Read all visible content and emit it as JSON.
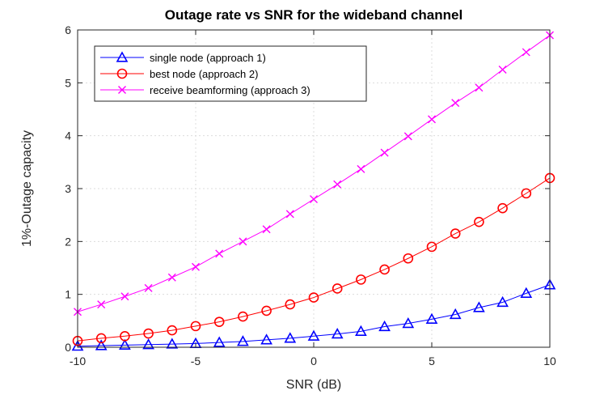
{
  "chart_data": {
    "type": "line",
    "title": "Outage rate vs SNR for the wideband channel",
    "xlabel": "SNR (dB)",
    "ylabel": "1%-Outage capacity",
    "xlim": [
      -10,
      10
    ],
    "ylim": [
      0,
      6
    ],
    "xticks": [
      -10,
      -5,
      0,
      5,
      10
    ],
    "yticks": [
      0,
      1,
      2,
      3,
      4,
      5,
      6
    ],
    "grid": true,
    "legend_position": "top-left",
    "x": [
      -10,
      -9,
      -8,
      -7,
      -6,
      -5,
      -4,
      -3,
      -2,
      -1,
      0,
      1,
      2,
      3,
      4,
      5,
      6,
      7,
      8,
      9,
      10
    ],
    "series": [
      {
        "name": "single node (approach 1)",
        "color": "#0000ff",
        "marker": "triangle",
        "values": [
          0.02,
          0.03,
          0.04,
          0.05,
          0.06,
          0.07,
          0.09,
          0.11,
          0.14,
          0.17,
          0.21,
          0.25,
          0.3,
          0.39,
          0.45,
          0.53,
          0.62,
          0.75,
          0.85,
          1.02,
          1.18
        ]
      },
      {
        "name": "best node (approach 2)",
        "color": "#ff0000",
        "marker": "circle",
        "values": [
          0.12,
          0.17,
          0.21,
          0.26,
          0.32,
          0.4,
          0.48,
          0.58,
          0.69,
          0.81,
          0.94,
          1.11,
          1.28,
          1.47,
          1.68,
          1.9,
          2.15,
          2.37,
          2.63,
          2.91,
          3.2
        ]
      },
      {
        "name": "receive beamforming (approach 3)",
        "color": "#ff00ff",
        "marker": "x",
        "values": [
          0.67,
          0.81,
          0.96,
          1.12,
          1.32,
          1.52,
          1.77,
          2.0,
          2.23,
          2.52,
          2.8,
          3.08,
          3.37,
          3.68,
          3.99,
          4.31,
          4.62,
          4.91,
          5.25,
          5.58,
          5.9
        ]
      }
    ]
  }
}
